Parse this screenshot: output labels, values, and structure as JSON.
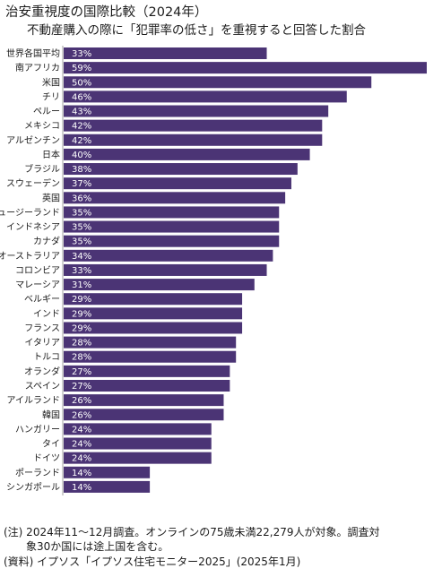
{
  "chart_data": {
    "type": "bar",
    "orientation": "horizontal",
    "title": "治安重視度の国際比較（2024年）",
    "subtitle": "不動産購入の際に「犯罪率の低さ」を重視すると回答した割合",
    "categories": [
      "世界各国平均",
      "南アフリカ",
      "米国",
      "チリ",
      "ペルー",
      "メキシコ",
      "アルゼンチン",
      "日本",
      "ブラジル",
      "スウェーデン",
      "英国",
      "ニュージーランド",
      "インドネシア",
      "カナダ",
      "オーストラリア",
      "コロンビア",
      "マレーシア",
      "ベルギー",
      "インド",
      "フランス",
      "イタリア",
      "トルコ",
      "オランダ",
      "スペイン",
      "アイルランド",
      "韓国",
      "ハンガリー",
      "タイ",
      "ドイツ",
      "ポーランド",
      "シンガポール"
    ],
    "values": [
      33,
      59,
      50,
      46,
      43,
      42,
      42,
      40,
      38,
      37,
      36,
      35,
      35,
      35,
      34,
      33,
      31,
      29,
      29,
      29,
      28,
      28,
      27,
      27,
      26,
      26,
      24,
      24,
      24,
      14,
      14
    ],
    "value_suffix": "%",
    "xlim": [
      0,
      59
    ],
    "grid": false,
    "bar_color": "#4b3475"
  },
  "notes": {
    "note1": "(注) 2024年11～12月調査。オンラインの75歳未満22,279人が対象。調査対",
    "note2": "象30か国には途上国を含む。",
    "source": "(資料) イプソス「イプソス住宅モニター2025」(2025年1月)"
  }
}
